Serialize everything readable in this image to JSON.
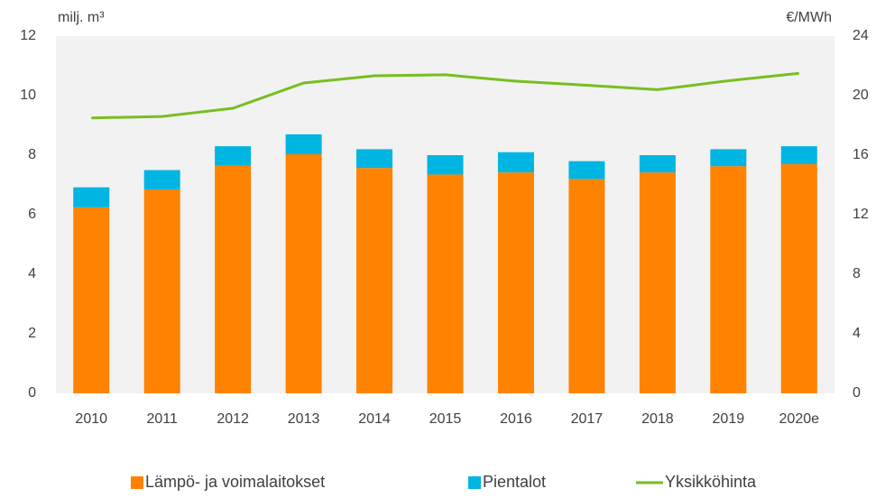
{
  "chart_data": {
    "type": "bar_line",
    "y_label": "milj. m³",
    "y2_label": "€/MWh",
    "categories": [
      "2010",
      "2011",
      "2012",
      "2013",
      "2014",
      "2015",
      "2016",
      "2017",
      "2018",
      "2019",
      "2020e"
    ],
    "series": [
      {
        "name": "Lämpö- ja voimalaitokset",
        "color": "#ff8200",
        "kind": "bar",
        "values": [
          6.25,
          6.85,
          7.65,
          8.03,
          7.57,
          7.35,
          7.42,
          7.2,
          7.42,
          7.63,
          7.7
        ]
      },
      {
        "name": "Pientalot",
        "color": "#00b5e2",
        "kind": "bar",
        "values": [
          0.67,
          0.65,
          0.65,
          0.67,
          0.63,
          0.65,
          0.68,
          0.6,
          0.58,
          0.57,
          0.6
        ]
      },
      {
        "name": "Yksikköhinta",
        "color": "#78be20",
        "kind": "line",
        "axis": "y2",
        "values": [
          18.5,
          18.6,
          19.15,
          20.85,
          21.33,
          21.4,
          20.97,
          20.7,
          20.4,
          21.0,
          21.5
        ]
      }
    ],
    "stacked": true,
    "ylim": [
      0,
      12
    ],
    "yticks": [
      0,
      2,
      4,
      6,
      8,
      10,
      12
    ],
    "y2lim": [
      0,
      24
    ],
    "y2ticks": [
      0,
      4,
      8,
      12,
      16,
      20,
      24
    ],
    "legend": "bottom"
  }
}
